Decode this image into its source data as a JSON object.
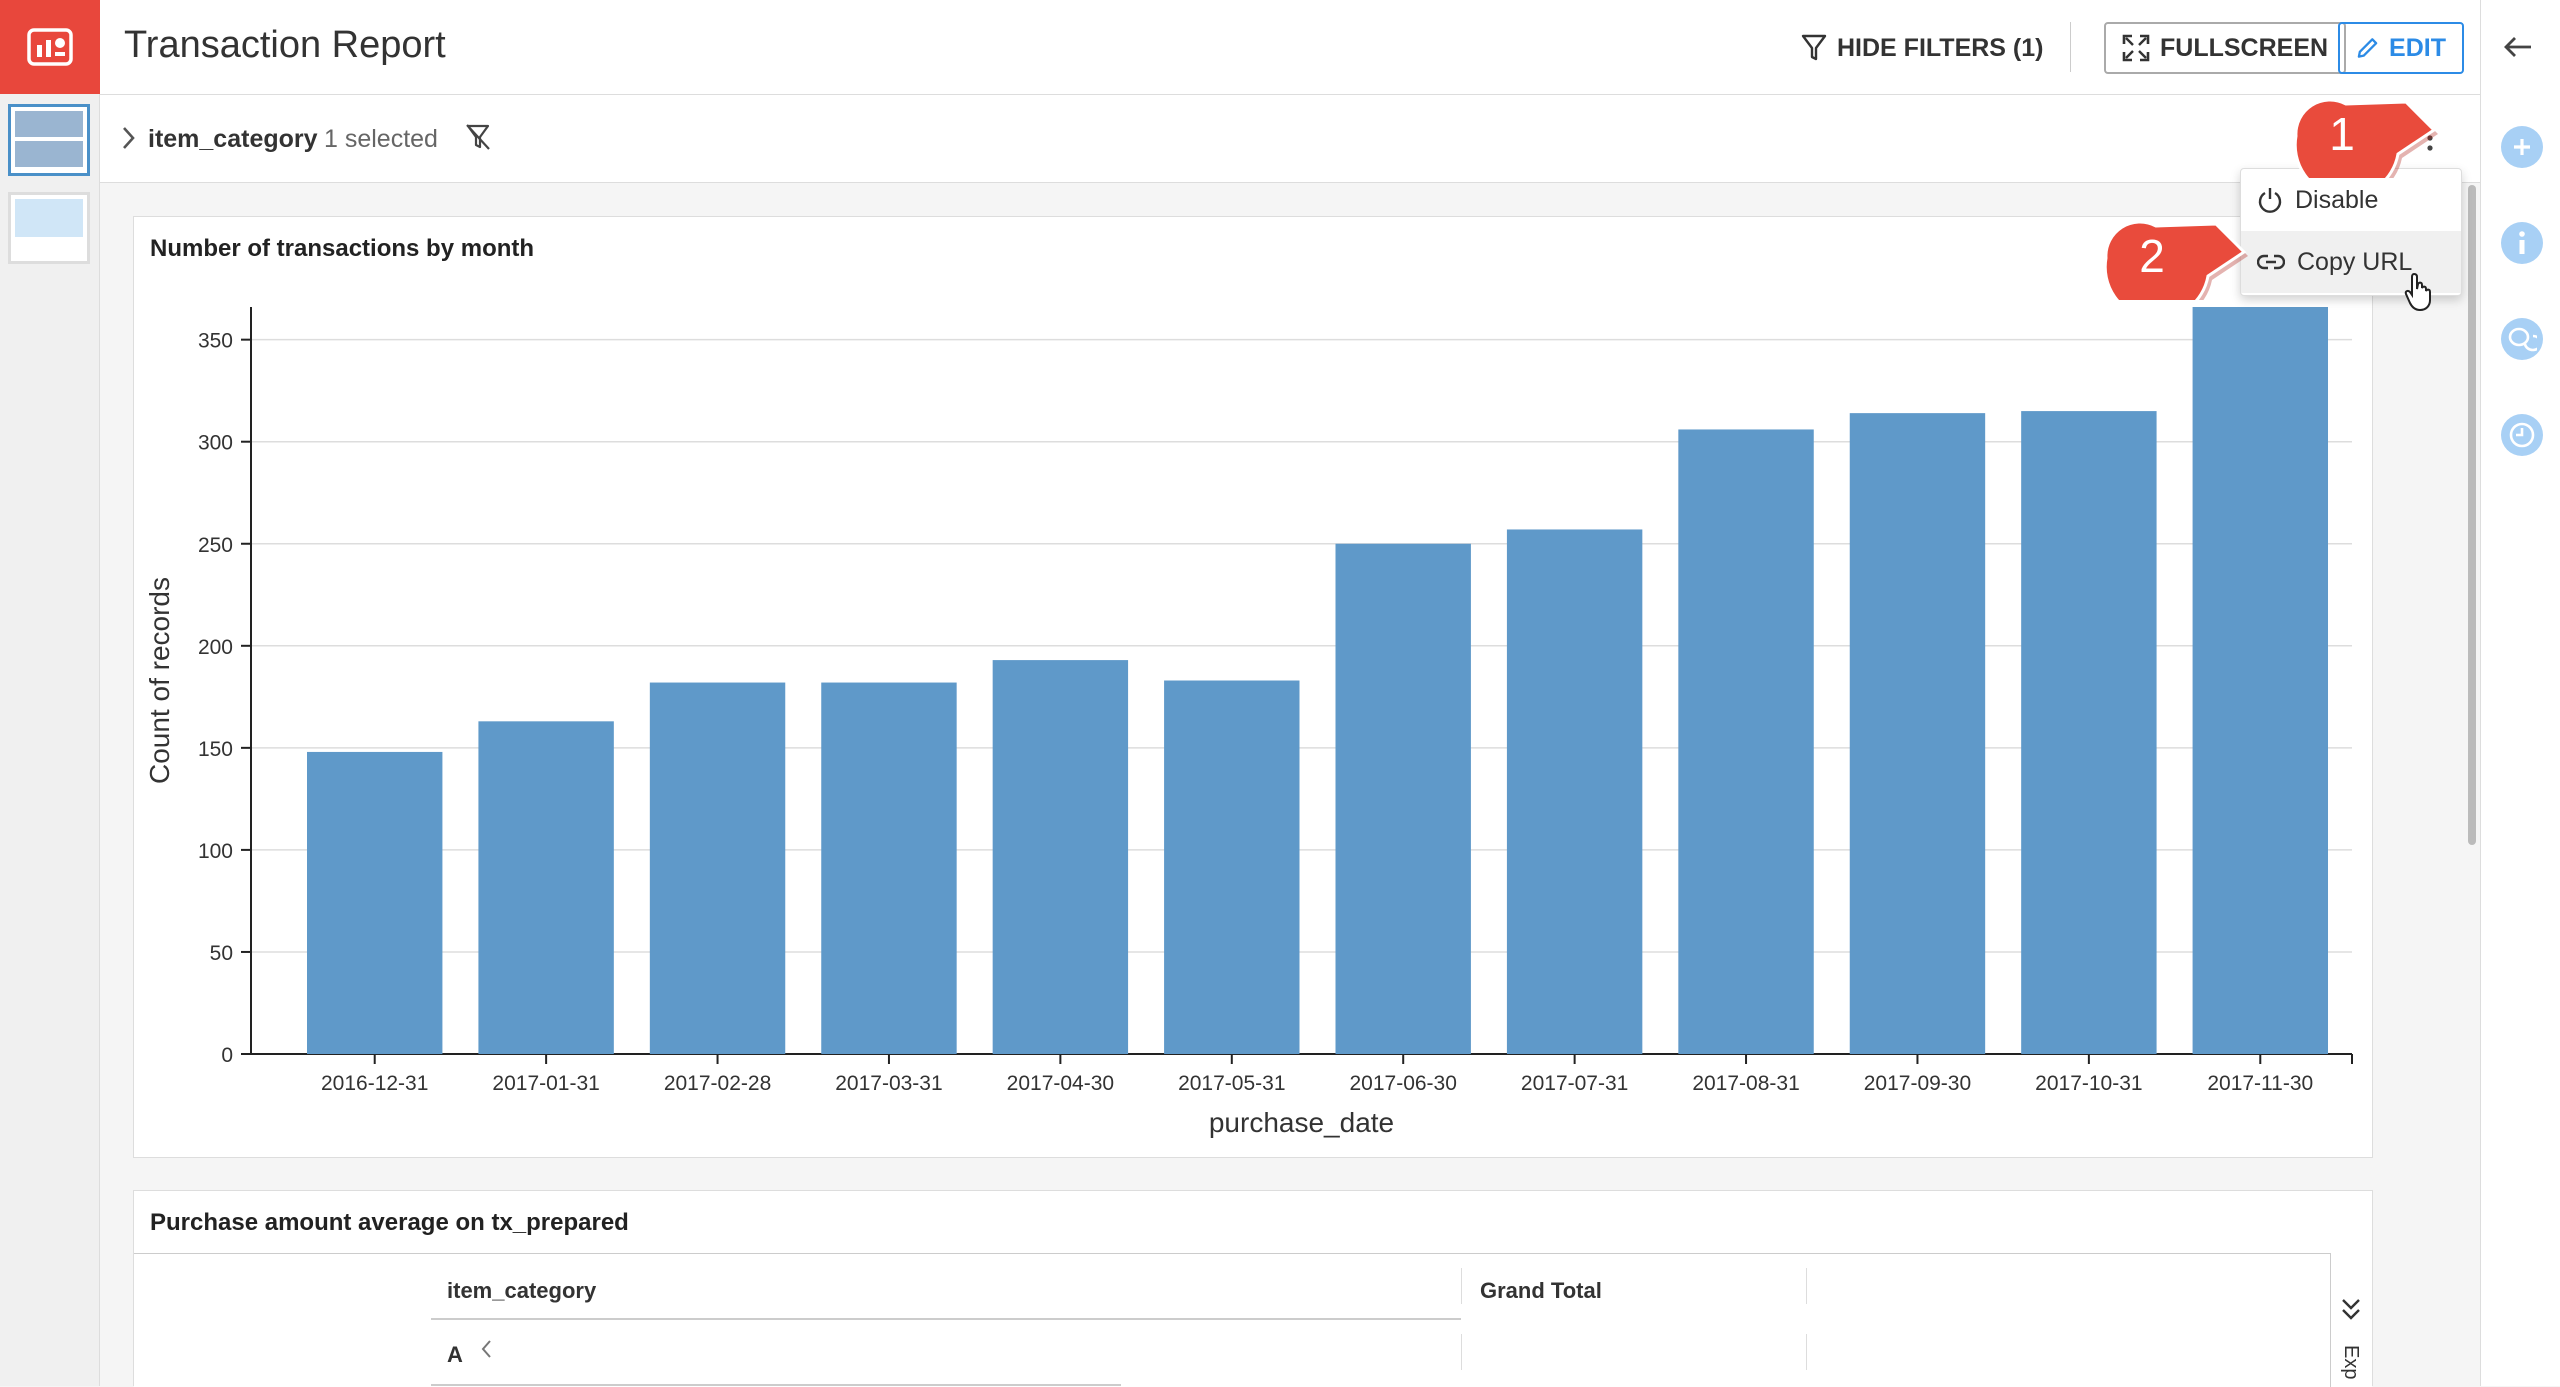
{
  "app": {
    "title": "Transaction Report",
    "hide_filters_label": "HIDE FILTERS (1)",
    "fullscreen_label": "FULLSCREEN",
    "edit_label": "EDIT",
    "accent": "#e8473c",
    "link_color": "#2c8be6"
  },
  "filter": {
    "name": "item_category",
    "count": "1 selected"
  },
  "menu": {
    "items": [
      {
        "label": "Disable",
        "icon": "power-icon"
      },
      {
        "label": "Copy URL",
        "icon": "link-icon"
      }
    ]
  },
  "callouts": {
    "one": "1",
    "two": "2"
  },
  "chart_card": {
    "title": "Number of transactions by month"
  },
  "chart_data": {
    "type": "bar",
    "title": "Number of transactions by month",
    "xlabel": "purchase_date",
    "ylabel": "Count of records",
    "categories": [
      "2016-12-31",
      "2017-01-31",
      "2017-02-28",
      "2017-03-31",
      "2017-04-30",
      "2017-05-31",
      "2017-06-30",
      "2017-07-31",
      "2017-08-31",
      "2017-09-30",
      "2017-10-31",
      "2017-11-30"
    ],
    "values": [
      148,
      163,
      182,
      182,
      193,
      183,
      250,
      257,
      306,
      314,
      315,
      366
    ],
    "ylim": [
      0,
      366
    ],
    "yticks": [
      0,
      50,
      100,
      150,
      200,
      250,
      300,
      350
    ],
    "grid": true,
    "bar_color": "#5f99c9"
  },
  "table_card": {
    "title": "Purchase amount average on tx_prepared",
    "column_header": "item_category",
    "grand_total_header": "Grand Total",
    "row_label": "A",
    "expand_label": "Exp"
  }
}
